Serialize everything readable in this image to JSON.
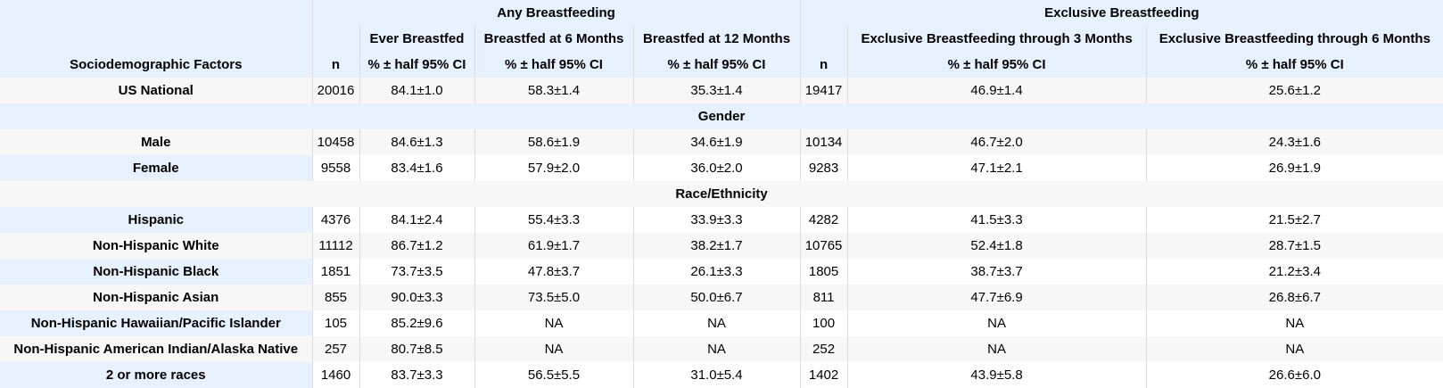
{
  "header": {
    "group_any": "Any Breastfeeding",
    "group_exclusive": "Exclusive Breastfeeding",
    "sub": {
      "ever": "Ever Breastfed",
      "six": "Breastfed at 6 Months",
      "twelve": "Breastfed at 12 Months",
      "ex3": "Exclusive Breastfeeding through 3 Months",
      "ex6": "Exclusive Breastfeeding through 6 Months"
    },
    "factor": "Sociodemographic Factors",
    "n": "n",
    "ci": "% ± half 95% CI"
  },
  "national": {
    "label": "US National",
    "n1": "20016",
    "ever": "84.1±1.0",
    "six": "58.3±1.4",
    "twelve": "35.3±1.4",
    "n2": "19417",
    "ex3": "46.9±1.4",
    "ex6": "25.6±1.2"
  },
  "sections": {
    "gender": "Gender",
    "race": "Race/Ethnicity"
  },
  "rows": [
    {
      "label": "Male",
      "n1": "10458",
      "ever": "84.6±1.3",
      "six": "58.6±1.9",
      "twelve": "34.6±1.9",
      "n2": "10134",
      "ex3": "46.7±2.0",
      "ex6": "24.3±1.6"
    },
    {
      "label": "Female",
      "n1": "9558",
      "ever": "83.4±1.6",
      "six": "57.9±2.0",
      "twelve": "36.0±2.0",
      "n2": "9283",
      "ex3": "47.1±2.1",
      "ex6": "26.9±1.9"
    },
    {
      "label": "Hispanic",
      "n1": "4376",
      "ever": "84.1±2.4",
      "six": "55.4±3.3",
      "twelve": "33.9±3.3",
      "n2": "4282",
      "ex3": "41.5±3.3",
      "ex6": "21.5±2.7"
    },
    {
      "label": "Non-Hispanic White",
      "n1": "11112",
      "ever": "86.7±1.2",
      "six": "61.9±1.7",
      "twelve": "38.2±1.7",
      "n2": "10765",
      "ex3": "52.4±1.8",
      "ex6": "28.7±1.5"
    },
    {
      "label": "Non-Hispanic Black",
      "n1": "1851",
      "ever": "73.7±3.5",
      "six": "47.8±3.7",
      "twelve": "26.1±3.3",
      "n2": "1805",
      "ex3": "38.7±3.7",
      "ex6": "21.2±3.4"
    },
    {
      "label": "Non-Hispanic Asian",
      "n1": "855",
      "ever": "90.0±3.3",
      "six": "73.5±5.0",
      "twelve": "50.0±6.7",
      "n2": "811",
      "ex3": "47.7±6.9",
      "ex6": "26.8±6.7"
    },
    {
      "label": "Non-Hispanic Hawaiian/Pacific Islander",
      "n1": "105",
      "ever": "85.2±9.6",
      "six": "NA",
      "twelve": "NA",
      "n2": "100",
      "ex3": "NA",
      "ex6": "NA"
    },
    {
      "label": "Non-Hispanic American Indian/Alaska Native",
      "n1": "257",
      "ever": "80.7±8.5",
      "six": "NA",
      "twelve": "NA",
      "n2": "252",
      "ex3": "NA",
      "ex6": "NA"
    },
    {
      "label": "2 or more races",
      "n1": "1460",
      "ever": "83.7±3.3",
      "six": "56.5±5.5",
      "twelve": "31.0±5.4",
      "n2": "1402",
      "ex3": "43.9±5.8",
      "ex6": "26.6±6.0"
    }
  ]
}
